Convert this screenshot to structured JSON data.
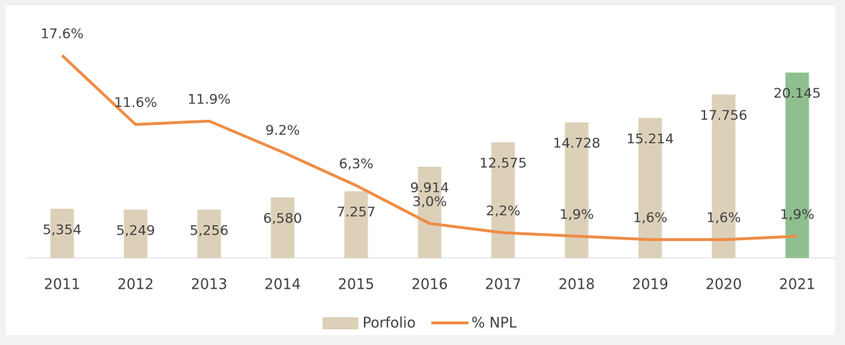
{
  "chart_data": {
    "type": "bar-line",
    "categories": [
      "2011",
      "2012",
      "2013",
      "2014",
      "2015",
      "2016",
      "2017",
      "2018",
      "2019",
      "2020",
      "2021"
    ],
    "series": [
      {
        "name": "Porfolio",
        "type": "bar",
        "color": "#ddd0b9",
        "colors": [
          "#ddd0b9",
          "#ddd0b9",
          "#ddd0b9",
          "#ddd0b9",
          "#ddd0b9",
          "#ddd0b9",
          "#ddd0b9",
          "#ddd0b9",
          "#ddd0b9",
          "#ddd0b9",
          "#8fbf8f"
        ],
        "values": [
          5354,
          5249,
          5256,
          6580,
          7257,
          9914,
          12575,
          14728,
          15214,
          17756,
          20145
        ],
        "value_labels": [
          "5,354",
          "5,249",
          "5,256",
          "6,580",
          "7.257",
          "9.914",
          "12.575",
          "14.728",
          "15.214",
          "17.756",
          "20.145"
        ]
      },
      {
        "name": "% NPL",
        "type": "line",
        "axis": "y2",
        "color": "#ee8c45",
        "values": [
          17.6,
          11.6,
          11.9,
          9.2,
          6.3,
          3.0,
          2.2,
          1.9,
          1.6,
          1.6,
          1.9
        ],
        "value_labels": [
          "17.6%",
          "11.6%",
          "11.9%",
          "9.2%",
          "6,3%",
          "3,0%",
          "2,2%",
          "1,9%",
          "1,6%",
          "1,6%",
          "1,9%"
        ]
      }
    ],
    "ylim": [
      0,
      25000
    ],
    "y2lim": [
      0,
      20
    ],
    "legend": "bottom"
  }
}
